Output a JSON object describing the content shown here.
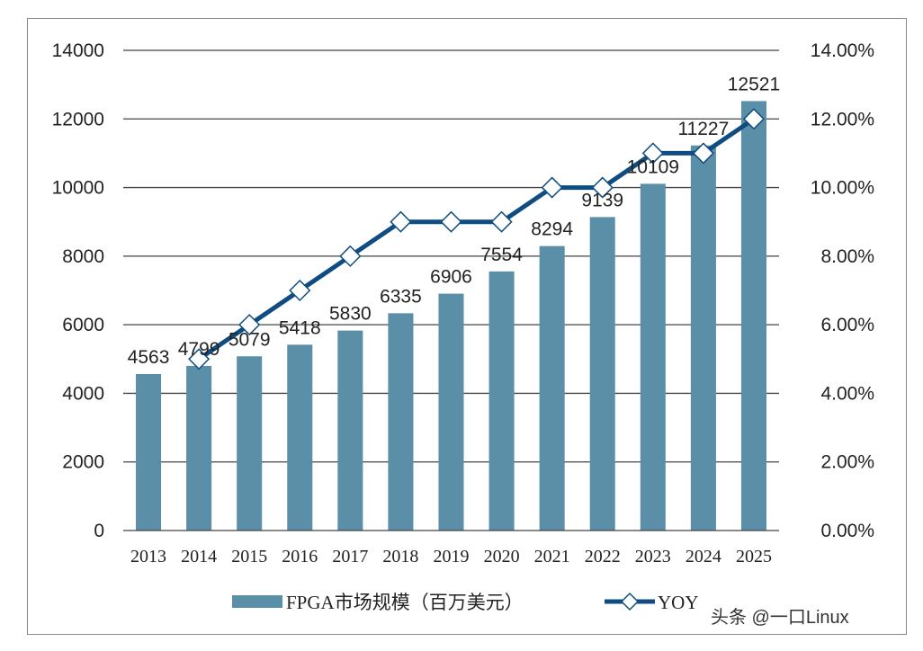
{
  "chart_data": {
    "type": "bar",
    "categories": [
      "2013",
      "2014",
      "2015",
      "2016",
      "2017",
      "2018",
      "2019",
      "2020",
      "2021",
      "2022",
      "2023",
      "2024",
      "2025"
    ],
    "series": [
      {
        "name": "FPGA市场规模（百万美元）",
        "type": "bar",
        "axis": "left",
        "values": [
          4563,
          4799,
          5079,
          5418,
          5830,
          6335,
          6906,
          7554,
          8294,
          9139,
          10109,
          11227,
          12521
        ]
      },
      {
        "name": "YOY",
        "type": "line",
        "axis": "right",
        "marker": "diamond",
        "x": [
          "2014",
          "2015",
          "2016",
          "2017",
          "2018",
          "2019",
          "2020",
          "2021",
          "2022",
          "2023",
          "2024",
          "2025"
        ],
        "values": [
          5,
          6,
          7,
          8,
          9,
          9,
          9,
          10,
          10,
          11,
          11,
          12
        ]
      }
    ],
    "ylim": [
      0,
      14000
    ],
    "yticks": [
      "0",
      "2000",
      "4000",
      "6000",
      "8000",
      "10000",
      "12000",
      "14000"
    ],
    "y2lim": [
      0,
      14
    ],
    "y2ticks": [
      "0.00%",
      "2.00%",
      "4.00%",
      "6.00%",
      "8.00%",
      "10.00%",
      "12.00%",
      "14.00%"
    ],
    "grid": true,
    "legend_placement": "bottom",
    "colors": {
      "bar": "#5b8fa8",
      "line": "#0f4c81",
      "grid": "#444444"
    }
  },
  "watermark": "头条 @一口Linux"
}
